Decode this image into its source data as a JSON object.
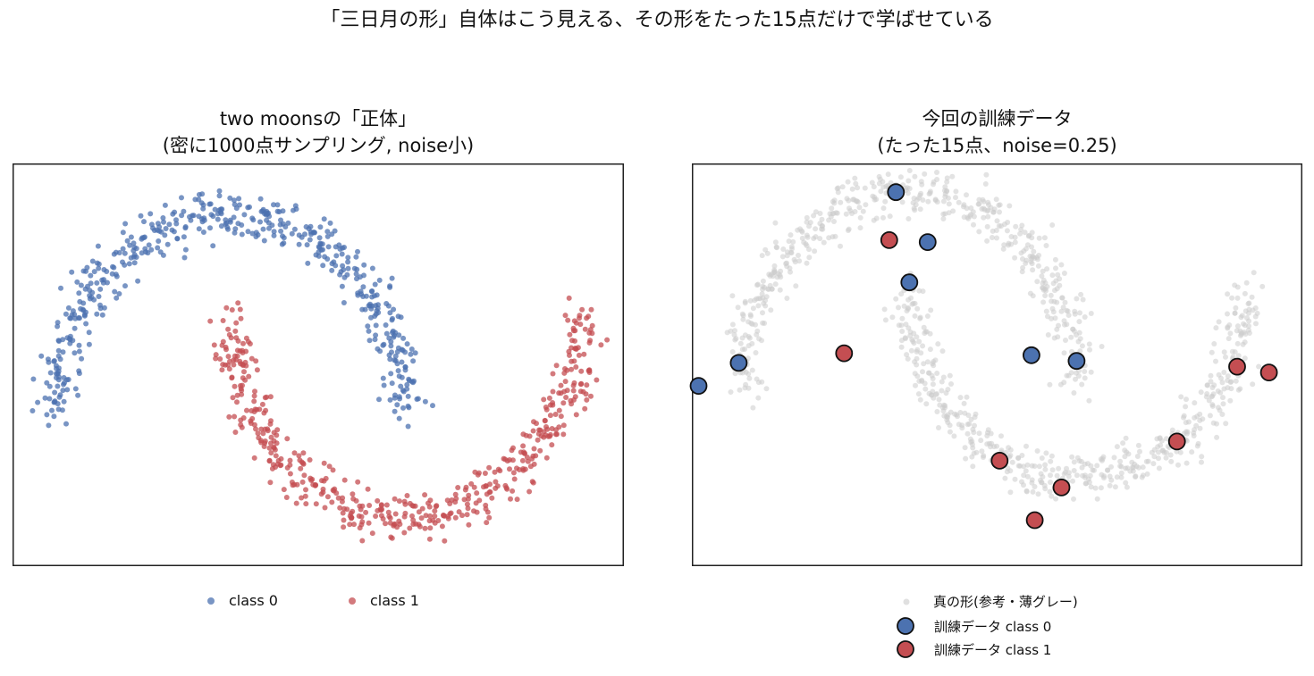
{
  "suptitle": "「三日月の形」自体はこう見える、その形をたった15点だけで学ばせている",
  "chart_data": [
    {
      "type": "scatter",
      "title_lines": [
        "two moonsの「正体」",
        "(密に1000点サンプリング, noise小)"
      ],
      "xlabel": "",
      "ylabel": "",
      "xlim": [
        -1.25,
        2.25
      ],
      "ylim": [
        -0.75,
        1.25
      ],
      "grid": false,
      "legend_position": "bottom-center",
      "series": [
        {
          "name": "class 0",
          "color": "#4c72b0",
          "alpha": 0.75,
          "n_points": 500,
          "noise": 0.06,
          "shape": "upper moon: x = cos(t), y = sin(t), t in [0, π]"
        },
        {
          "name": "class 1",
          "color": "#c44e52",
          "alpha": 0.75,
          "n_points": 500,
          "noise": 0.06,
          "shape": "lower moon: x = 1 - cos(t), y = 0.5 - sin(t), t in [0, π]"
        }
      ]
    },
    {
      "type": "scatter",
      "title_lines": [
        "今回の訓練データ",
        "(たった15点、noise=0.25)"
      ],
      "xlabel": "",
      "ylabel": "",
      "xlim": [
        -1.3,
        2.35
      ],
      "ylim": [
        -0.95,
        1.15
      ],
      "grid": false,
      "legend_position": "bottom-center",
      "background_series": {
        "name": "真の形(参考・薄グレー)",
        "color": "#cccccc",
        "alpha": 0.55,
        "n_points": 1000,
        "noise": 0.06
      },
      "series": [
        {
          "name": "訓練データ class 0",
          "color": "#4c72b0",
          "edgecolor": "#111111",
          "points": [
            [
              -0.08,
              1.0
            ],
            [
              0.11,
              0.74
            ],
            [
              0.0,
              0.53
            ],
            [
              -1.02,
              0.11
            ],
            [
              -1.26,
              -0.01
            ],
            [
              0.73,
              0.15
            ],
            [
              1.0,
              0.12
            ]
          ]
        },
        {
          "name": "訓練データ class 1",
          "color": "#c44e52",
          "edgecolor": "#111111",
          "points": [
            [
              -0.12,
              0.75
            ],
            [
              -0.39,
              0.16
            ],
            [
              0.54,
              -0.4
            ],
            [
              0.91,
              -0.54
            ],
            [
              0.75,
              -0.71
            ],
            [
              1.6,
              -0.3
            ],
            [
              1.96,
              0.09
            ],
            [
              2.15,
              0.06
            ]
          ]
        }
      ]
    }
  ]
}
